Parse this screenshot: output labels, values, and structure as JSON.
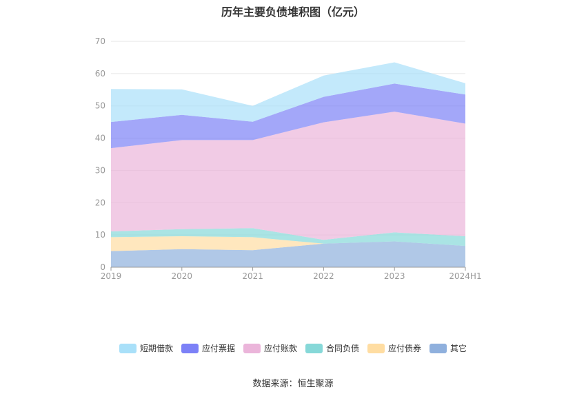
{
  "chart_data": {
    "type": "area",
    "stacked": true,
    "title": "历年主要负债堆积图（亿元）",
    "categories": [
      "2019",
      "2020",
      "2021",
      "2022",
      "2023",
      "2024H1"
    ],
    "ylim": [
      0,
      70
    ],
    "yticks": [
      0,
      10,
      20,
      30,
      40,
      50,
      60,
      70
    ],
    "grid": true,
    "legend_position": "bottom",
    "series": [
      {
        "name": "其它",
        "color": "#8fb0dd",
        "values": [
          5.0,
          5.6,
          5.3,
          7.3,
          8.0,
          6.6
        ]
      },
      {
        "name": "应付债券",
        "color": "#ffdda2",
        "values": [
          4.3,
          4.0,
          4.0,
          0.0,
          0.0,
          0.0
        ]
      },
      {
        "name": "合同负债",
        "color": "#86d8d8",
        "values": [
          1.8,
          2.2,
          2.8,
          1.2,
          2.8,
          3.0
        ]
      },
      {
        "name": "应付账款",
        "color": "#ebb5da",
        "values": [
          25.8,
          27.6,
          27.3,
          36.4,
          37.4,
          34.9
        ]
      },
      {
        "name": "应付票据",
        "color": "#7c81f7",
        "values": [
          8.1,
          7.8,
          5.7,
          7.9,
          8.7,
          9.0
        ]
      },
      {
        "name": "短期借款",
        "color": "#a9e0f9",
        "values": [
          10.2,
          7.9,
          4.9,
          6.6,
          6.6,
          3.5
        ]
      }
    ]
  },
  "legend_order": [
    "短期借款",
    "应付票据",
    "应付账款",
    "合同负债",
    "应付债券",
    "其它"
  ],
  "source": "数据来源：恒生聚源"
}
